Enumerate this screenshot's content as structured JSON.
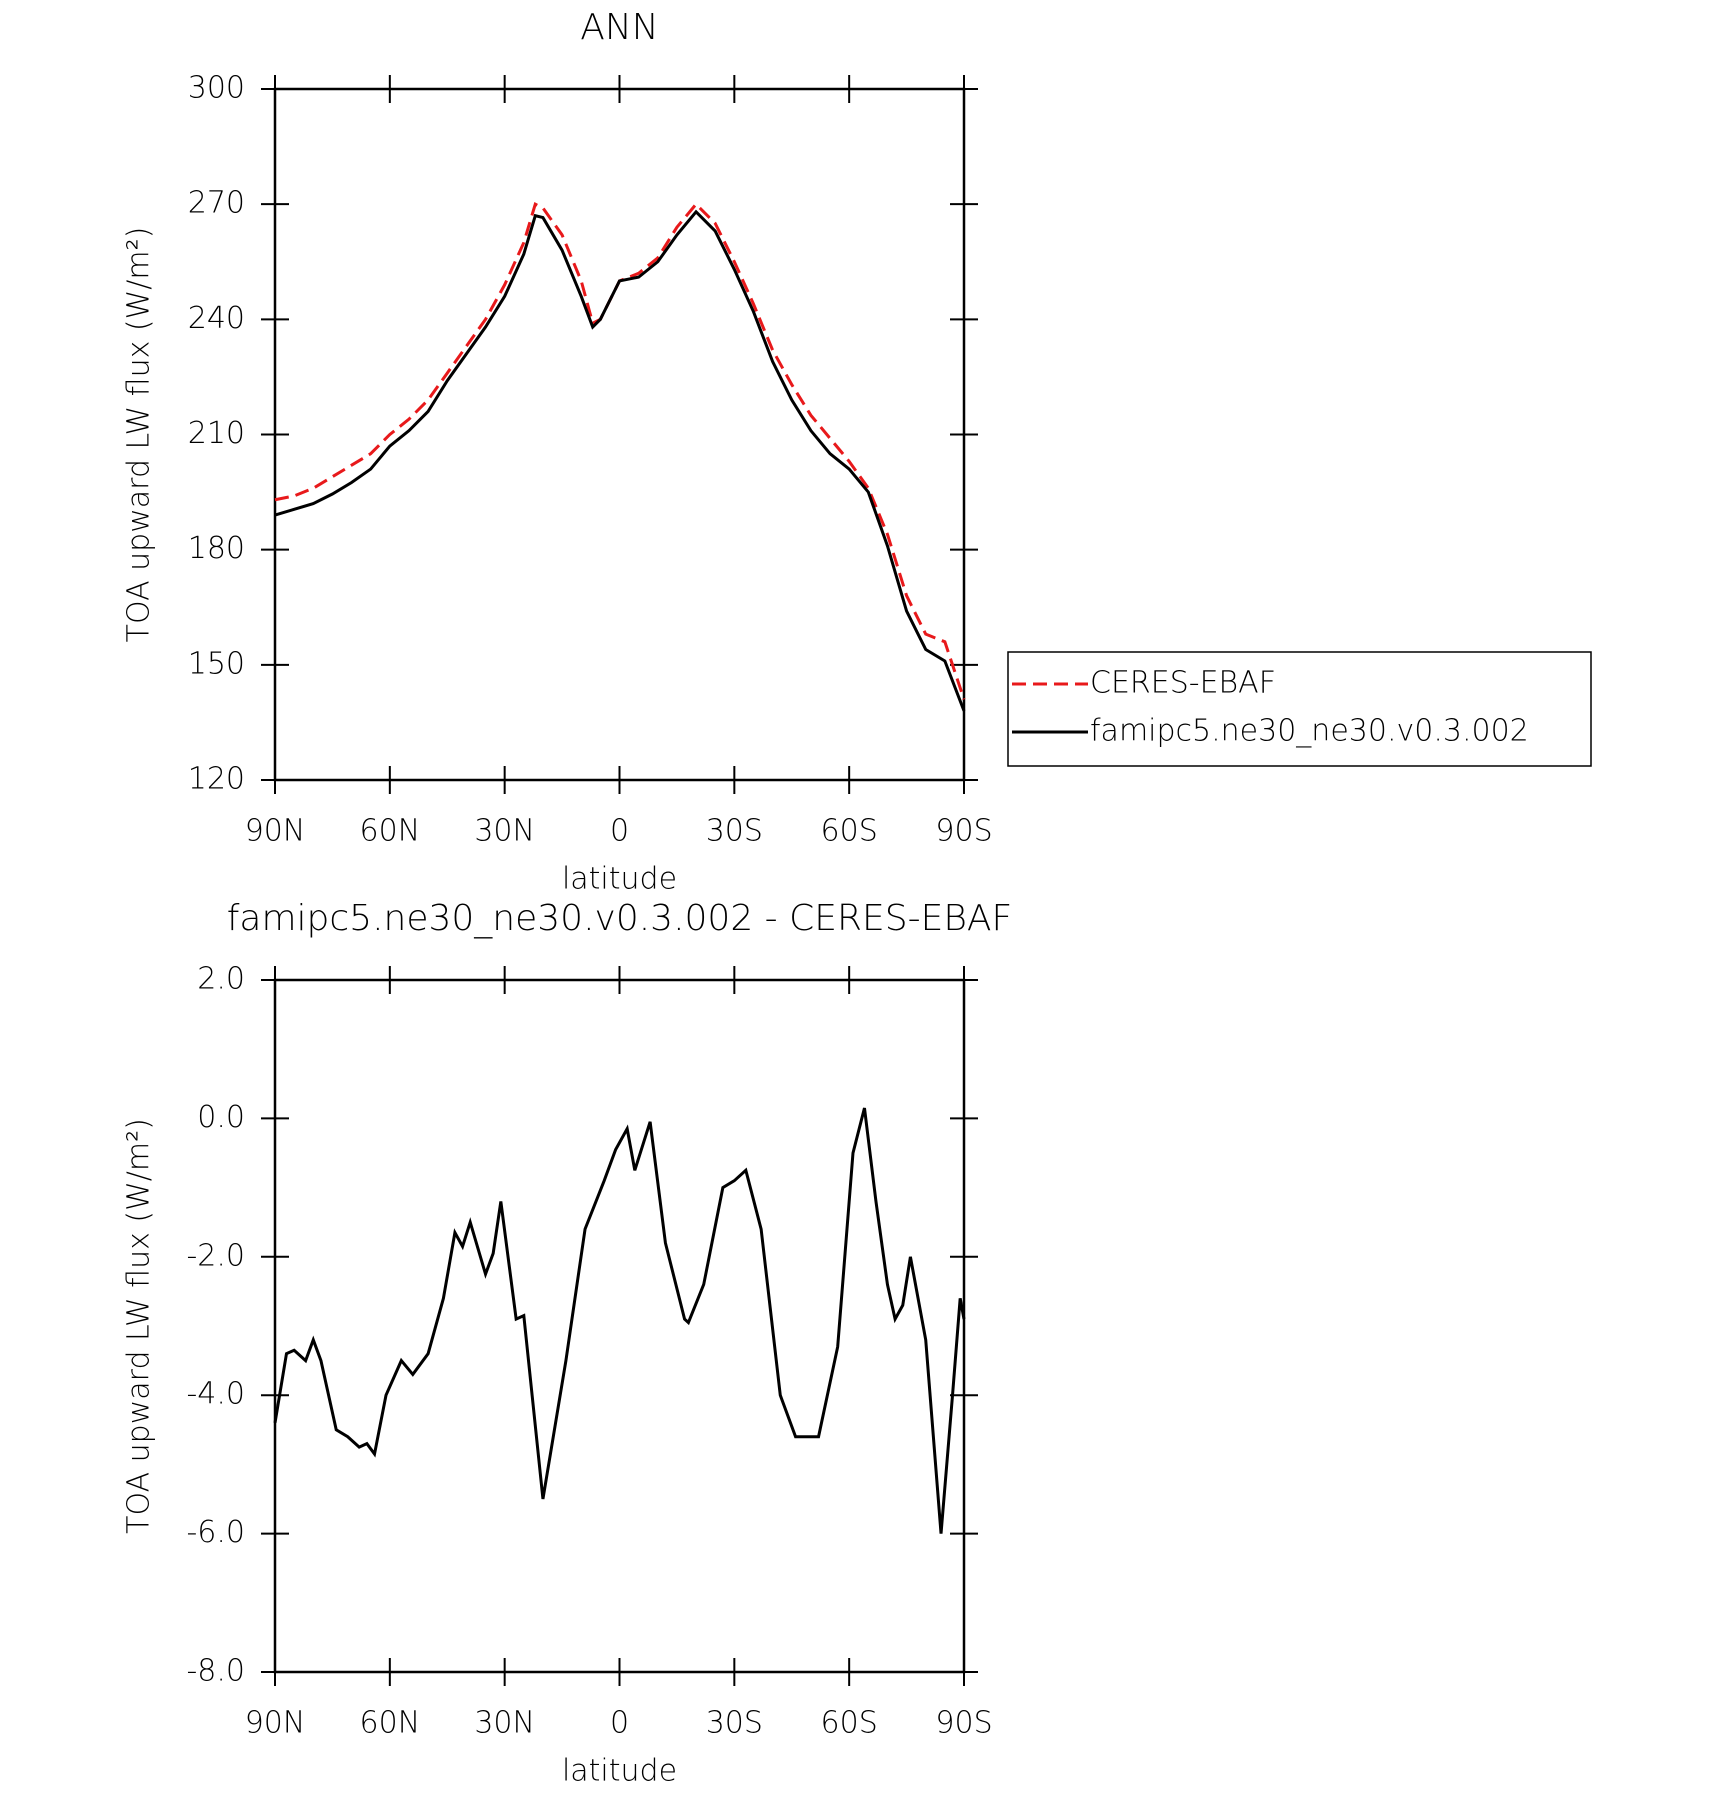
{
  "chart_data": [
    {
      "type": "line",
      "title": "ANN",
      "xlabel": "latitude",
      "ylabel": "TOA upward LW flux (W/m²)",
      "x": [
        90,
        85,
        80,
        75,
        70,
        65,
        60,
        55,
        50,
        45,
        40,
        35,
        30,
        25,
        22,
        20,
        15,
        10,
        7,
        5,
        0,
        -5,
        -10,
        -15,
        -20,
        -25,
        -30,
        -35,
        -40,
        -45,
        -50,
        -55,
        -60,
        -65,
        -70,
        -75,
        -80,
        -85,
        -90
      ],
      "series": [
        {
          "name": "CERES-EBAF",
          "color": "#e8191b",
          "line_style": "dashed",
          "values": [
            193,
            194,
            196,
            199,
            202,
            205,
            210,
            214,
            219,
            226,
            233,
            240,
            249,
            260,
            270,
            269,
            262,
            250,
            239,
            240,
            250,
            252,
            256,
            264,
            270,
            265,
            255,
            244,
            232,
            223,
            215,
            209,
            203,
            196,
            184,
            168,
            158,
            156,
            141
          ]
        },
        {
          "name": "famipc5.ne30_ne30.v0.3.002",
          "color": "#000000",
          "line_style": "solid",
          "values": [
            189,
            190.5,
            192,
            194.5,
            197.5,
            201,
            207,
            211,
            216,
            224,
            231,
            238,
            246,
            257,
            267,
            266.5,
            258,
            246,
            238,
            240,
            250,
            251,
            255,
            262,
            268,
            263,
            253,
            242,
            229,
            219,
            211,
            205,
            201,
            195,
            181,
            164,
            154,
            151,
            138
          ]
        }
      ],
      "xlim": [
        90,
        -90
      ],
      "xticks": [
        {
          "value": 90,
          "label": "90N"
        },
        {
          "value": 60,
          "label": "60N"
        },
        {
          "value": 30,
          "label": "30N"
        },
        0,
        {
          "value": -30,
          "label": "30S"
        },
        {
          "value": -60,
          "label": "60S"
        },
        {
          "value": -90,
          "label": "90S"
        }
      ],
      "ylim": [
        120,
        300
      ],
      "yticks": [
        120,
        150,
        180,
        210,
        240,
        270,
        300
      ],
      "legend": "right"
    },
    {
      "type": "line",
      "title": "famipc5.ne30_ne30.v0.3.002 - CERES-EBAF",
      "xlabel": "latitude",
      "ylabel": "TOA upward LW flux (W/m²)",
      "x": [
        90,
        87,
        85,
        82,
        80,
        78,
        76,
        74,
        71,
        68,
        66,
        64,
        61,
        57,
        54,
        50,
        46,
        43,
        41,
        39,
        35,
        33,
        31,
        27,
        25,
        20,
        14,
        9,
        4,
        1,
        -2,
        -4,
        -8,
        -12,
        -17,
        -18,
        -22,
        -27,
        -30,
        -33,
        -37,
        -42,
        -46,
        -52,
        -57,
        -61,
        -64,
        -67,
        -70,
        -72,
        -74,
        -76,
        -80,
        -84,
        -87,
        -89,
        -90
      ],
      "series": [
        {
          "color": "#000000",
          "line_style": "solid",
          "values": [
            -4.4,
            -3.4,
            -3.35,
            -3.5,
            -3.2,
            -3.5,
            -4.0,
            -4.5,
            -4.6,
            -4.75,
            -4.7,
            -4.85,
            -4.0,
            -3.5,
            -3.7,
            -3.4,
            -2.6,
            -1.65,
            -1.85,
            -1.5,
            -2.25,
            -1.95,
            -1.2,
            -2.9,
            -2.85,
            -5.5,
            -3.5,
            -1.6,
            -0.9,
            -0.45,
            -0.15,
            -0.75,
            -0.05,
            -1.8,
            -2.9,
            -2.95,
            -2.4,
            -1.0,
            -0.9,
            -0.75,
            -1.6,
            -4.0,
            -4.6,
            -4.6,
            -3.3,
            -0.5,
            0.15,
            -1.2,
            -2.4,
            -2.9,
            -2.7,
            -2.0,
            -3.2,
            -6.0,
            -4.0,
            -2.6,
            -2.9
          ]
        }
      ],
      "xlim": [
        90,
        -90
      ],
      "xticks": [
        {
          "value": 90,
          "label": "90N"
        },
        {
          "value": 60,
          "label": "60N"
        },
        {
          "value": 30,
          "label": "30N"
        },
        0,
        {
          "value": -30,
          "label": "30S"
        },
        {
          "value": -60,
          "label": "60S"
        },
        {
          "value": -90,
          "label": "90S"
        }
      ],
      "ylim": [
        -8,
        2
      ],
      "yticks": [
        {
          "value": -8,
          "label": "-8.0"
        },
        {
          "value": -6,
          "label": "-6.0"
        },
        {
          "value": -4,
          "label": "-4.0"
        },
        {
          "value": -2,
          "label": "-2.0"
        },
        {
          "value": 0,
          "label": "0.0"
        },
        {
          "value": 2,
          "label": "2.0"
        }
      ]
    }
  ]
}
